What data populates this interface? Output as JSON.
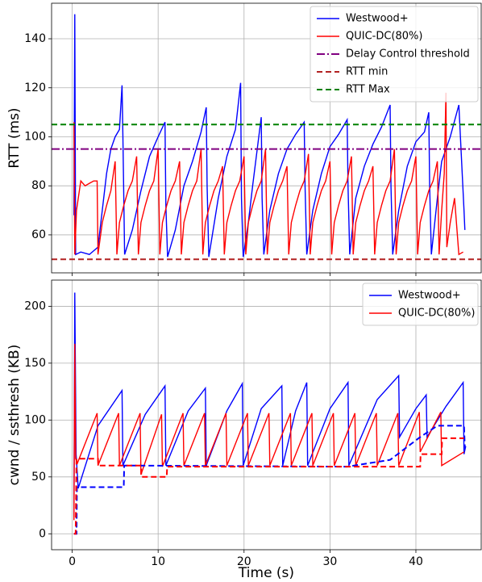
{
  "chart_data": [
    {
      "type": "line",
      "ylabel": "RTT (ms)",
      "xlim": [
        -2.4,
        47.6
      ],
      "ylim": [
        44.5,
        154.5
      ],
      "xticks": [
        0,
        10,
        20,
        30,
        40
      ],
      "xticklabels": false,
      "yticks": [
        60,
        80,
        100,
        120,
        140
      ],
      "grid": true,
      "legend": "upper right",
      "series": [
        {
          "name": "Westwood+",
          "color": "#0000ff",
          "style": "solid",
          "x": [
            0.2,
            0.3,
            0.4,
            1,
            2,
            3,
            3.5,
            4,
            4.5,
            5,
            5.5,
            5.8,
            5.9,
            6.1,
            7,
            8,
            9,
            10,
            10.8,
            10.9,
            11.1,
            12,
            13,
            14,
            15,
            15.6,
            15.7,
            15.9,
            17,
            18,
            19,
            19.6,
            19.7,
            19.9,
            20.5,
            21,
            22,
            22.1,
            22.3,
            23,
            24,
            25,
            26,
            27,
            27.1,
            27.3,
            28,
            29,
            30,
            31,
            32,
            32.1,
            32.3,
            33,
            34,
            35,
            36,
            37,
            37.1,
            37.3,
            38,
            39,
            40,
            41,
            41.5,
            41.6,
            41.8,
            42.5,
            43,
            44,
            45,
            45.6,
            45.7
          ],
          "values": [
            68,
            150,
            52,
            53,
            52,
            55,
            70,
            85,
            95,
            100,
            103,
            121,
            100,
            52,
            62,
            78,
            92,
            100,
            106,
            72,
            51,
            62,
            80,
            90,
            102,
            112,
            80,
            51,
            75,
            92,
            103,
            122,
            75,
            51,
            65,
            80,
            108,
            75,
            52,
            70,
            85,
            95,
            101,
            106,
            80,
            52,
            70,
            85,
            96,
            101,
            107,
            80,
            52,
            75,
            88,
            97,
            104,
            113,
            80,
            52,
            70,
            88,
            98,
            102,
            110,
            80,
            52,
            75,
            90,
            100,
            113,
            70,
            62
          ]
        },
        {
          "name": "QUIC-DC(80%)",
          "color": "#ff0000",
          "style": "solid",
          "x": [
            0.2,
            0.3,
            0.5,
            1,
            1.5,
            2,
            2.5,
            2.9,
            3,
            3.5,
            4,
            4.5,
            5,
            5.2,
            5.5,
            6,
            6.5,
            7,
            7.5,
            7.7,
            8,
            8.5,
            9,
            9.5,
            10,
            10.2,
            10.5,
            11,
            11.5,
            12,
            12.5,
            12.7,
            13,
            13.5,
            14,
            14.5,
            15,
            15.2,
            15.5,
            16,
            16.5,
            17,
            17.5,
            17.7,
            18,
            18.5,
            19,
            19.5,
            20,
            20.2,
            20.5,
            21,
            21.5,
            22,
            22.5,
            22.7,
            23,
            23.5,
            24,
            24.5,
            25,
            25.2,
            25.5,
            26,
            26.5,
            27,
            27.5,
            27.7,
            28,
            28.5,
            29,
            29.5,
            30,
            30.2,
            30.5,
            31,
            31.5,
            32,
            32.5,
            32.7,
            33,
            33.5,
            34,
            34.5,
            35,
            35.2,
            35.5,
            36,
            36.5,
            37,
            37.5,
            37.7,
            38,
            38.5,
            39,
            39.5,
            40,
            40.2,
            40.5,
            41,
            41.5,
            42,
            42.5,
            42.7,
            43,
            43.3,
            43.5,
            43.6,
            44,
            44.5,
            45,
            45.5
          ],
          "values": [
            106,
            52,
            70,
            82,
            80,
            81,
            82,
            82,
            52,
            65,
            72,
            78,
            90,
            52,
            65,
            72,
            78,
            82,
            92,
            52,
            65,
            72,
            78,
            82,
            95,
            52,
            65,
            72,
            78,
            82,
            90,
            52,
            65,
            72,
            78,
            82,
            95,
            52,
            65,
            72,
            78,
            82,
            88,
            52,
            65,
            72,
            78,
            82,
            92,
            52,
            65,
            72,
            78,
            82,
            95,
            52,
            65,
            72,
            78,
            82,
            88,
            52,
            65,
            72,
            78,
            82,
            93,
            52,
            65,
            72,
            78,
            82,
            90,
            52,
            65,
            72,
            78,
            82,
            92,
            52,
            65,
            72,
            78,
            82,
            88,
            52,
            65,
            72,
            78,
            82,
            95,
            52,
            65,
            72,
            78,
            82,
            92,
            52,
            65,
            72,
            78,
            82,
            90,
            52,
            70,
            85,
            118,
            55,
            65,
            75,
            52,
            53
          ]
        },
        {
          "name": "Delay Control threshold",
          "color": "#800080",
          "style": "dashdot",
          "x": [
            -2.4,
            47.6
          ],
          "values": [
            95,
            95
          ]
        },
        {
          "name": "RTT min",
          "color": "#b22222",
          "style": "dashed",
          "x": [
            -2.4,
            47.6
          ],
          "values": [
            50,
            50
          ]
        },
        {
          "name": "RTT Max",
          "color": "#008000",
          "style": "dashed",
          "x": [
            -2.4,
            47.6
          ],
          "values": [
            105,
            105
          ]
        }
      ]
    },
    {
      "type": "line",
      "ylabel": "cwnd / ssthresh (KB)",
      "xlabel": "Time (s)",
      "xlim": [
        -2.4,
        47.6
      ],
      "ylim": [
        -14,
        223
      ],
      "xticks": [
        0,
        10,
        20,
        30,
        40
      ],
      "xticklabels": true,
      "yticks": [
        0,
        50,
        100,
        150,
        200
      ],
      "grid": true,
      "legend": "upper right",
      "series": [
        {
          "name": "Westwood+",
          "color": "#0000ff",
          "style": "solid",
          "x": [
            0.2,
            0.3,
            0.45,
            0.7,
            3,
            5.8,
            5.9,
            8.5,
            10.8,
            10.9,
            13.5,
            15.5,
            15.6,
            18,
            19.8,
            19.9,
            22,
            24.4,
            24.5,
            26,
            27.3,
            27.4,
            30,
            32.1,
            32.2,
            35.5,
            38,
            38.1,
            40,
            41.2,
            41.3,
            43.5,
            45.5,
            45.6,
            45.8
          ],
          "values": [
            15,
            212,
            70,
            40,
            95,
            126,
            60,
            105,
            130,
            60,
            108,
            128,
            60,
            108,
            132,
            60,
            110,
            130,
            60,
            108,
            133,
            60,
            110,
            133,
            60,
            118,
            139,
            85,
            110,
            122,
            85,
            112,
            133,
            70,
            77
          ]
        },
        {
          "name": "QUIC-DC(80%)",
          "color": "#ff0000",
          "style": "solid",
          "x": [
            0.2,
            0.3,
            0.4,
            0.6,
            2.9,
            3,
            5.4,
            5.5,
            7.9,
            8,
            10.4,
            10.5,
            12.9,
            13,
            15.4,
            15.5,
            17.9,
            18,
            20.4,
            20.5,
            22.9,
            23,
            25.4,
            25.5,
            27.9,
            28,
            30.4,
            30.5,
            32.9,
            33,
            35.4,
            35.5,
            37.9,
            38,
            40.4,
            40.5,
            42.9,
            43,
            45.6
          ],
          "values": [
            12,
            167,
            66,
            62,
            106,
            60,
            106,
            60,
            106,
            52,
            105,
            59,
            106,
            60,
            106,
            60,
            106,
            60,
            106,
            60,
            106,
            60,
            106,
            60,
            106,
            60,
            106,
            60,
            106,
            60,
            106,
            60,
            106,
            60,
            107,
            72,
            107,
            60,
            72
          ]
        },
        {
          "color": "#0000ff",
          "style": "dashed",
          "x": [
            0.2,
            0.5,
            0.55,
            6,
            6.05,
            32,
            37,
            40.5,
            42.5,
            45.6,
            45.7
          ],
          "values": [
            0,
            0,
            41,
            41,
            60,
            59,
            65,
            85,
            95,
            95,
            75
          ]
        },
        {
          "color": "#ff0000",
          "style": "dashed",
          "x": [
            0.2,
            0.4,
            0.5,
            3,
            3.05,
            8,
            8.05,
            11,
            11.05,
            40.5,
            40.55,
            43,
            43.05,
            45.6
          ],
          "values": [
            0,
            0,
            66,
            66,
            60,
            60,
            50,
            50,
            59,
            59,
            70,
            70,
            84,
            84
          ]
        }
      ]
    }
  ]
}
